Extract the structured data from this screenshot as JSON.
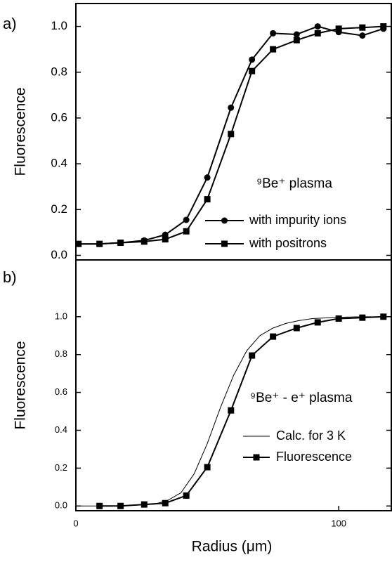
{
  "chart_data": [
    {
      "type": "line",
      "panel_label": "a)",
      "ylabel": "Fluorescence",
      "annotation": "⁹Be⁺ plasma",
      "xlim": [
        0,
        120
      ],
      "ylim": [
        -0.02,
        1.1
      ],
      "yticks": [
        {
          "value": 0,
          "label": "0.0"
        },
        {
          "value": 0.2,
          "label": "0.2"
        },
        {
          "value": 0.4,
          "label": "0.4"
        },
        {
          "value": 0.6,
          "label": "0.6"
        },
        {
          "value": 0.8,
          "label": "0.8"
        },
        {
          "value": 1,
          "label": "1.0"
        }
      ],
      "series": [
        {
          "name": "with impurity ions",
          "color": "#000000",
          "marker": "circle",
          "x": [
            1,
            9,
            17,
            26,
            34,
            42,
            50,
            59,
            67,
            75,
            84,
            92,
            100,
            109,
            117
          ],
          "values": [
            0.05,
            0.05,
            0.055,
            0.065,
            0.09,
            0.155,
            0.34,
            0.645,
            0.855,
            0.97,
            0.965,
            1.0,
            0.975,
            0.96,
            0.99
          ]
        },
        {
          "name": "with positrons",
          "color": "#000000",
          "marker": "square",
          "x": [
            1,
            9,
            17,
            26,
            34,
            42,
            50,
            59,
            67,
            75,
            84,
            92,
            100,
            109,
            117
          ],
          "values": [
            0.05,
            0.05,
            0.055,
            0.06,
            0.07,
            0.105,
            0.245,
            0.53,
            0.805,
            0.9,
            0.94,
            0.97,
            0.99,
            0.995,
            1.0
          ]
        }
      ]
    },
    {
      "type": "line",
      "panel_label": "b)",
      "ylabel": "Fluorescence",
      "xlabel": "Radius (μm)",
      "annotation": "⁹Be⁺ - e⁺ plasma",
      "xlim": [
        0,
        120
      ],
      "ylim": [
        -0.025,
        1.3
      ],
      "xticks": [
        0,
        100
      ],
      "yticks": [
        {
          "value": 0,
          "label": "0.0"
        },
        {
          "value": 0.2,
          "label": "0.2"
        },
        {
          "value": 0.4,
          "label": "0.4"
        },
        {
          "value": 0.6,
          "label": "0.6"
        },
        {
          "value": 0.8,
          "label": "0.8"
        },
        {
          "value": 1,
          "label": "1.0"
        }
      ],
      "series": [
        {
          "name": "Calc. for 3 K",
          "color": "#000000",
          "marker": "none",
          "x": [
            0,
            10,
            20,
            30,
            35,
            40,
            45,
            50,
            55,
            60,
            65,
            70,
            75,
            80,
            85,
            90,
            100,
            110,
            120
          ],
          "values": [
            0,
            0,
            0.002,
            0.01,
            0.03,
            0.07,
            0.17,
            0.33,
            0.52,
            0.69,
            0.82,
            0.9,
            0.94,
            0.965,
            0.98,
            0.99,
            0.997,
            1.0,
            1.0
          ]
        },
        {
          "name": "Fluorescence",
          "color": "#000000",
          "marker": "square",
          "x": [
            9,
            17,
            26,
            34,
            42,
            50,
            59,
            67,
            75,
            84,
            92,
            100,
            109,
            117
          ],
          "values": [
            0.0,
            0.0,
            0.008,
            0.015,
            0.055,
            0.205,
            0.505,
            0.795,
            0.895,
            0.94,
            0.97,
            0.99,
            0.995,
            1.0
          ]
        }
      ]
    }
  ]
}
